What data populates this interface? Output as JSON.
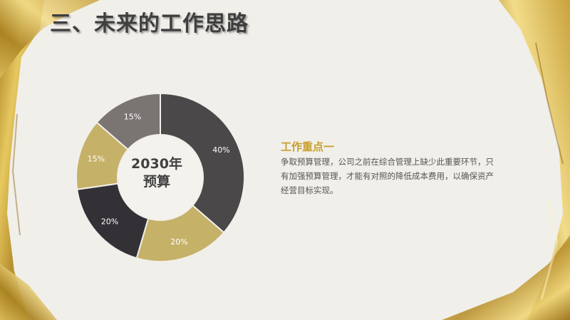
{
  "slide": {
    "title": "三、未来的工作思路",
    "center_label_line1": "2030年",
    "center_label_line2": "预算"
  },
  "work_point": {
    "heading": "工作重点一",
    "body": "争取预算管理，公司之前在综合管理上缺少此重要环节，只有加强预算管理，才能有对照的降低成本费用，以确保资产经营目标实现。"
  },
  "colors": {
    "accent_gold": "#c79f2a",
    "dark_gray": "#4a4848",
    "charcoal": "#333136",
    "khaki": "#c5b168",
    "warm_gray": "#7a7572",
    "background": "#f1efea"
  },
  "chart_data": {
    "type": "pie",
    "title": "",
    "slices": [
      {
        "value": 40,
        "label": "40%",
        "color": "#4a4848"
      },
      {
        "value": 20,
        "label": "20%",
        "color": "#c5b168"
      },
      {
        "value": 20,
        "label": "20%",
        "color": "#333136"
      },
      {
        "value": 15,
        "label": "15%",
        "color": "#c5b168"
      },
      {
        "value": 15,
        "label": "15%",
        "color": "#7a7572"
      }
    ]
  }
}
